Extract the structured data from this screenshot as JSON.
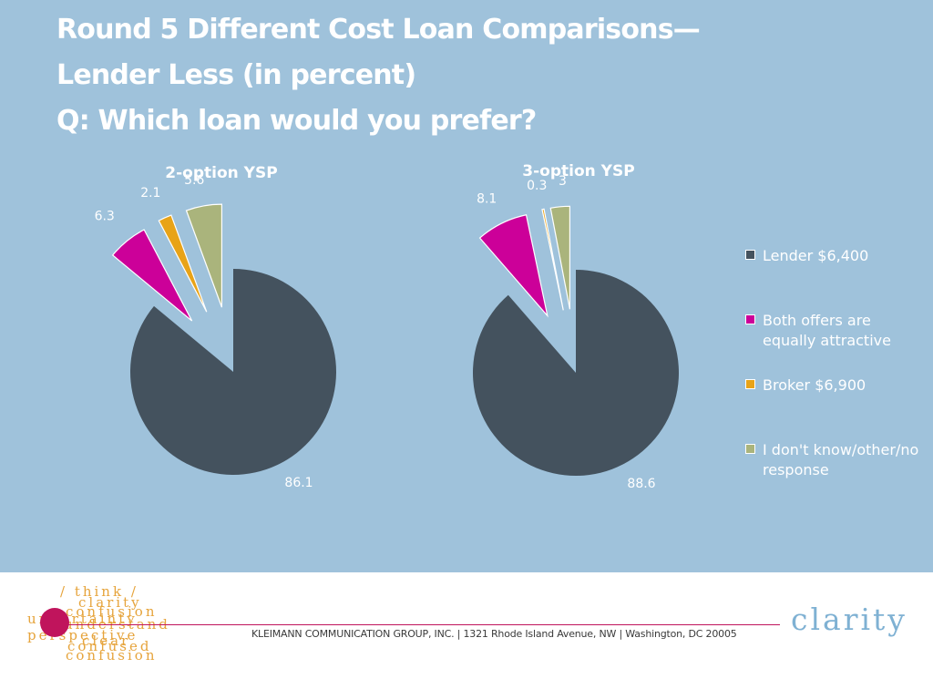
{
  "title": {
    "line1": "Round 5 Different Cost Loan Comparisons—",
    "line2": "Lender Less (in percent)",
    "line3": "Q: Which loan would you prefer?"
  },
  "legend": [
    {
      "label": "Lender $6,400",
      "color": "#44525e"
    },
    {
      "label": "Both offers are equally attractive",
      "color": "#cc0099"
    },
    {
      "label": "Broker $6,900",
      "color": "#e8a317"
    },
    {
      "label": "I don't know/other/no response",
      "color": "#aab47c"
    }
  ],
  "chart_data": [
    {
      "type": "pie",
      "title": "2-option YSP",
      "categories": [
        "Lender $6,400",
        "Both offers are equally attractive",
        "Broker $6,900",
        "I don't know/other/no response"
      ],
      "values": [
        86.1,
        6.3,
        2.1,
        5.6
      ],
      "labels": [
        "86.1",
        "6.3",
        "2.1",
        "5.6"
      ],
      "exploded": [
        false,
        true,
        true,
        true
      ],
      "legend_position": "right"
    },
    {
      "type": "pie",
      "title": "3-option YSP",
      "categories": [
        "Lender $6,400",
        "Both offers are equally attractive",
        "Broker $6,900",
        "I don't know/other/no response"
      ],
      "values": [
        88.6,
        8.1,
        0.3,
        3
      ],
      "labels": [
        "88.6",
        "8.1",
        "0.3",
        "3"
      ],
      "exploded": [
        false,
        true,
        true,
        true
      ],
      "legend_position": "right"
    }
  ],
  "footer": {
    "address": "KLEIMANN COMMUNICATION GROUP, INC. | 1321 Rhode Island Avenue, NW | Washington, DC 20005",
    "brand": "clarity",
    "logo_words": [
      "/ think /",
      "clarity",
      "confusion",
      "uncertainty",
      "understand",
      "perspective",
      "clear",
      "confused",
      "confusion"
    ]
  }
}
